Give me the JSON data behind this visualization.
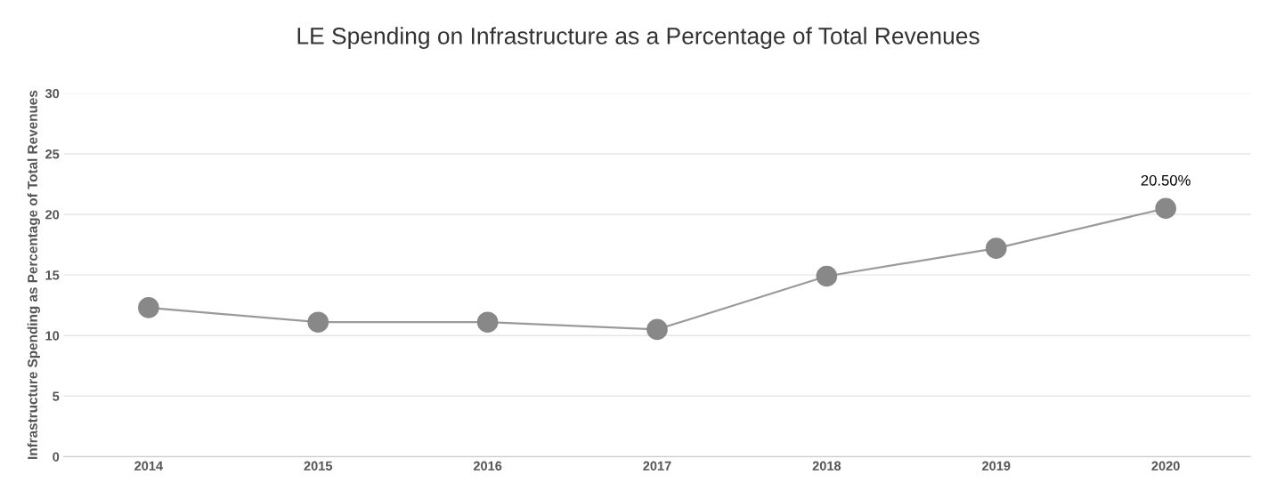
{
  "chart_data": {
    "type": "line",
    "title": "LE Spending on Infrastructure as a Percentage of Total Revenues",
    "ylabel": "Infrastructure Spending as Percentage of Total Revenues",
    "categories": [
      "2014",
      "2015",
      "2016",
      "2017",
      "2018",
      "2019",
      "2020"
    ],
    "series": [
      {
        "color": "#888888",
        "values": [
          12.3,
          11.1,
          11.1,
          10.5,
          14.9,
          17.2,
          20.5
        ],
        "value_labels": [
          null,
          null,
          null,
          null,
          null,
          null,
          "20.50%"
        ]
      }
    ],
    "ylim": [
      0,
      30
    ],
    "yticks": [
      0,
      5,
      10,
      15,
      20,
      25,
      30
    ],
    "grid": "y",
    "marker": "circle"
  }
}
